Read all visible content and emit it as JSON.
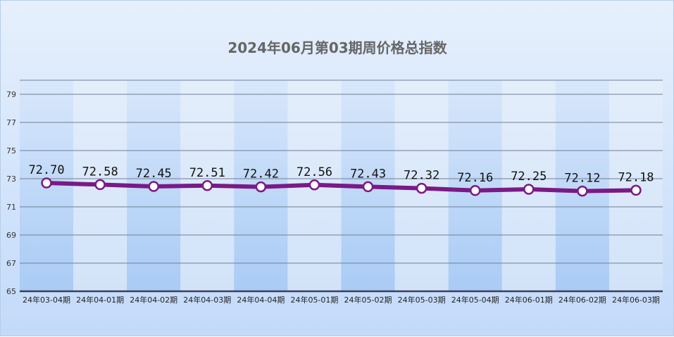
{
  "chart_data": {
    "type": "line",
    "title": "2024年06月第03期周价格总指数",
    "categories": [
      "24年03-04期",
      "24年04-01期",
      "24年04-02期",
      "24年04-03期",
      "24年04-04期",
      "24年05-01期",
      "24年05-02期",
      "24年05-03期",
      "24年05-04期",
      "24年06-01期",
      "24年06-02期",
      "24年06-03期"
    ],
    "values": [
      72.7,
      72.58,
      72.45,
      72.51,
      72.42,
      72.56,
      72.43,
      72.32,
      72.16,
      72.25,
      72.12,
      72.18
    ],
    "value_labels": [
      "72.70",
      "72.58",
      "72.45",
      "72.51",
      "72.42",
      "72.56",
      "72.43",
      "72.32",
      "72.16",
      "72.25",
      "72.12",
      "72.18"
    ],
    "ylim": [
      65,
      80
    ],
    "yticks": [
      65,
      67,
      69,
      71,
      73,
      75,
      77,
      79
    ],
    "grid": true,
    "colors": {
      "line": "#7a1a86",
      "marker_fill": "#ffffff",
      "band_dark": "#b7d3f7",
      "band_light": "#e3eefb",
      "gridline": "#6f7f95"
    }
  }
}
